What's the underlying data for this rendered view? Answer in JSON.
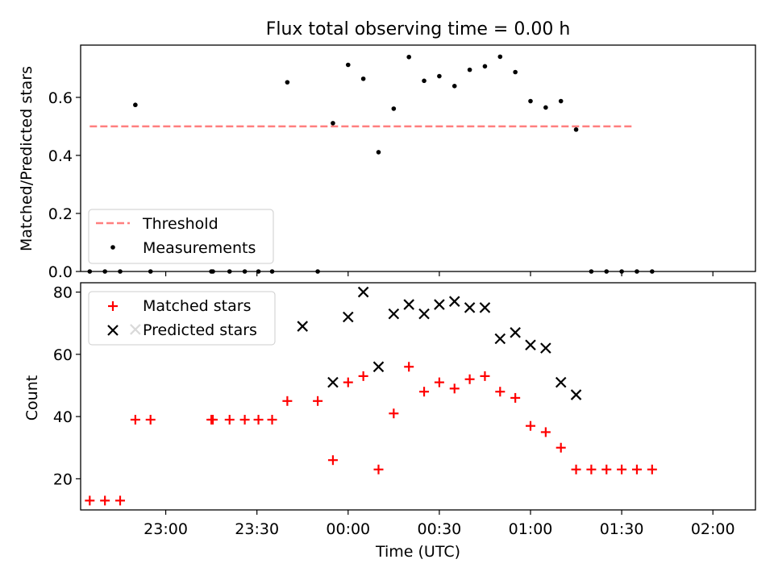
{
  "chart_data": [
    {
      "type": "scatter",
      "title": "Flux total observing time = 0.00 h",
      "xlabel": "",
      "ylabel": "Matched/Predicted stars",
      "ylim": [
        0,
        0.78
      ],
      "yticks": [
        0.0,
        0.2,
        0.4,
        0.6
      ],
      "ytick_labels": [
        "0.0",
        "0.2",
        "0.4",
        "0.6"
      ],
      "grid": false,
      "legend_position": "lower-left",
      "threshold": {
        "name": "Threshold",
        "value": 0.5,
        "x_range": [
          -25,
          154
        ],
        "color": "#ff7f7f",
        "style": "dashed"
      },
      "series": [
        {
          "name": "Measurements",
          "marker": "dot",
          "color": "#000000",
          "x": [
            -25,
            -20,
            -15,
            -10,
            -5,
            15,
            15.5,
            21,
            26,
            30.5,
            35,
            40,
            50,
            55,
            60,
            65,
            70,
            75,
            80,
            85,
            90,
            95,
            100,
            105,
            110,
            115,
            120,
            125,
            130,
            135,
            140,
            145,
            150,
            155,
            160
          ],
          "y": [
            0,
            0,
            0,
            0.574,
            0,
            0,
            0,
            0,
            0,
            0,
            0,
            0.652,
            0,
            0.511,
            0.712,
            0.664,
            0.411,
            0.561,
            0.739,
            0.657,
            0.673,
            0.639,
            0.695,
            0.707,
            0.74,
            0.687,
            0.587,
            0.565,
            0.587,
            0.489,
            0,
            0,
            0,
            0,
            0
          ]
        }
      ]
    },
    {
      "type": "scatter",
      "title": "",
      "xlabel": "Time (UTC)",
      "ylabel": "Count",
      "ylim": [
        10,
        83
      ],
      "xlim": [
        -28,
        194
      ],
      "xticks": [
        0,
        30,
        60,
        90,
        120,
        150,
        180
      ],
      "xtick_labels": [
        "23:00",
        "23:30",
        "00:00",
        "00:30",
        "01:00",
        "01:30",
        "02:00"
      ],
      "yticks": [
        20,
        40,
        60,
        80
      ],
      "ytick_labels": [
        "20",
        "40",
        "60",
        "80"
      ],
      "grid": false,
      "legend_position": "upper-left",
      "series": [
        {
          "name": "Matched stars",
          "marker": "plus",
          "color": "#ff0000",
          "x": [
            -25,
            -20,
            -15,
            -10,
            -5,
            15,
            15.5,
            21,
            26,
            30.5,
            35,
            40,
            50,
            55,
            60,
            65,
            70,
            75,
            80,
            85,
            90,
            95,
            100,
            105,
            110,
            115,
            120,
            125,
            130,
            135,
            140,
            145,
            150,
            155,
            160
          ],
          "y": [
            13,
            13,
            13,
            39,
            39,
            39,
            39,
            39,
            39,
            39,
            39,
            45,
            45,
            26,
            51,
            53,
            23,
            41,
            56,
            48,
            51,
            49,
            52,
            53,
            48,
            46,
            37,
            35,
            30,
            23,
            23,
            23,
            23,
            23,
            23
          ]
        },
        {
          "name": "Predicted stars",
          "marker": "x",
          "color": "#000000",
          "x": [
            -10,
            45,
            55,
            60,
            65,
            70,
            75,
            80,
            85,
            90,
            95,
            100,
            105,
            110,
            115,
            120,
            125,
            130,
            135
          ],
          "y": [
            68,
            69,
            51,
            72,
            80,
            56,
            73,
            76,
            73,
            76,
            77,
            75,
            75,
            65,
            67,
            63,
            62,
            51,
            47
          ]
        }
      ]
    }
  ]
}
